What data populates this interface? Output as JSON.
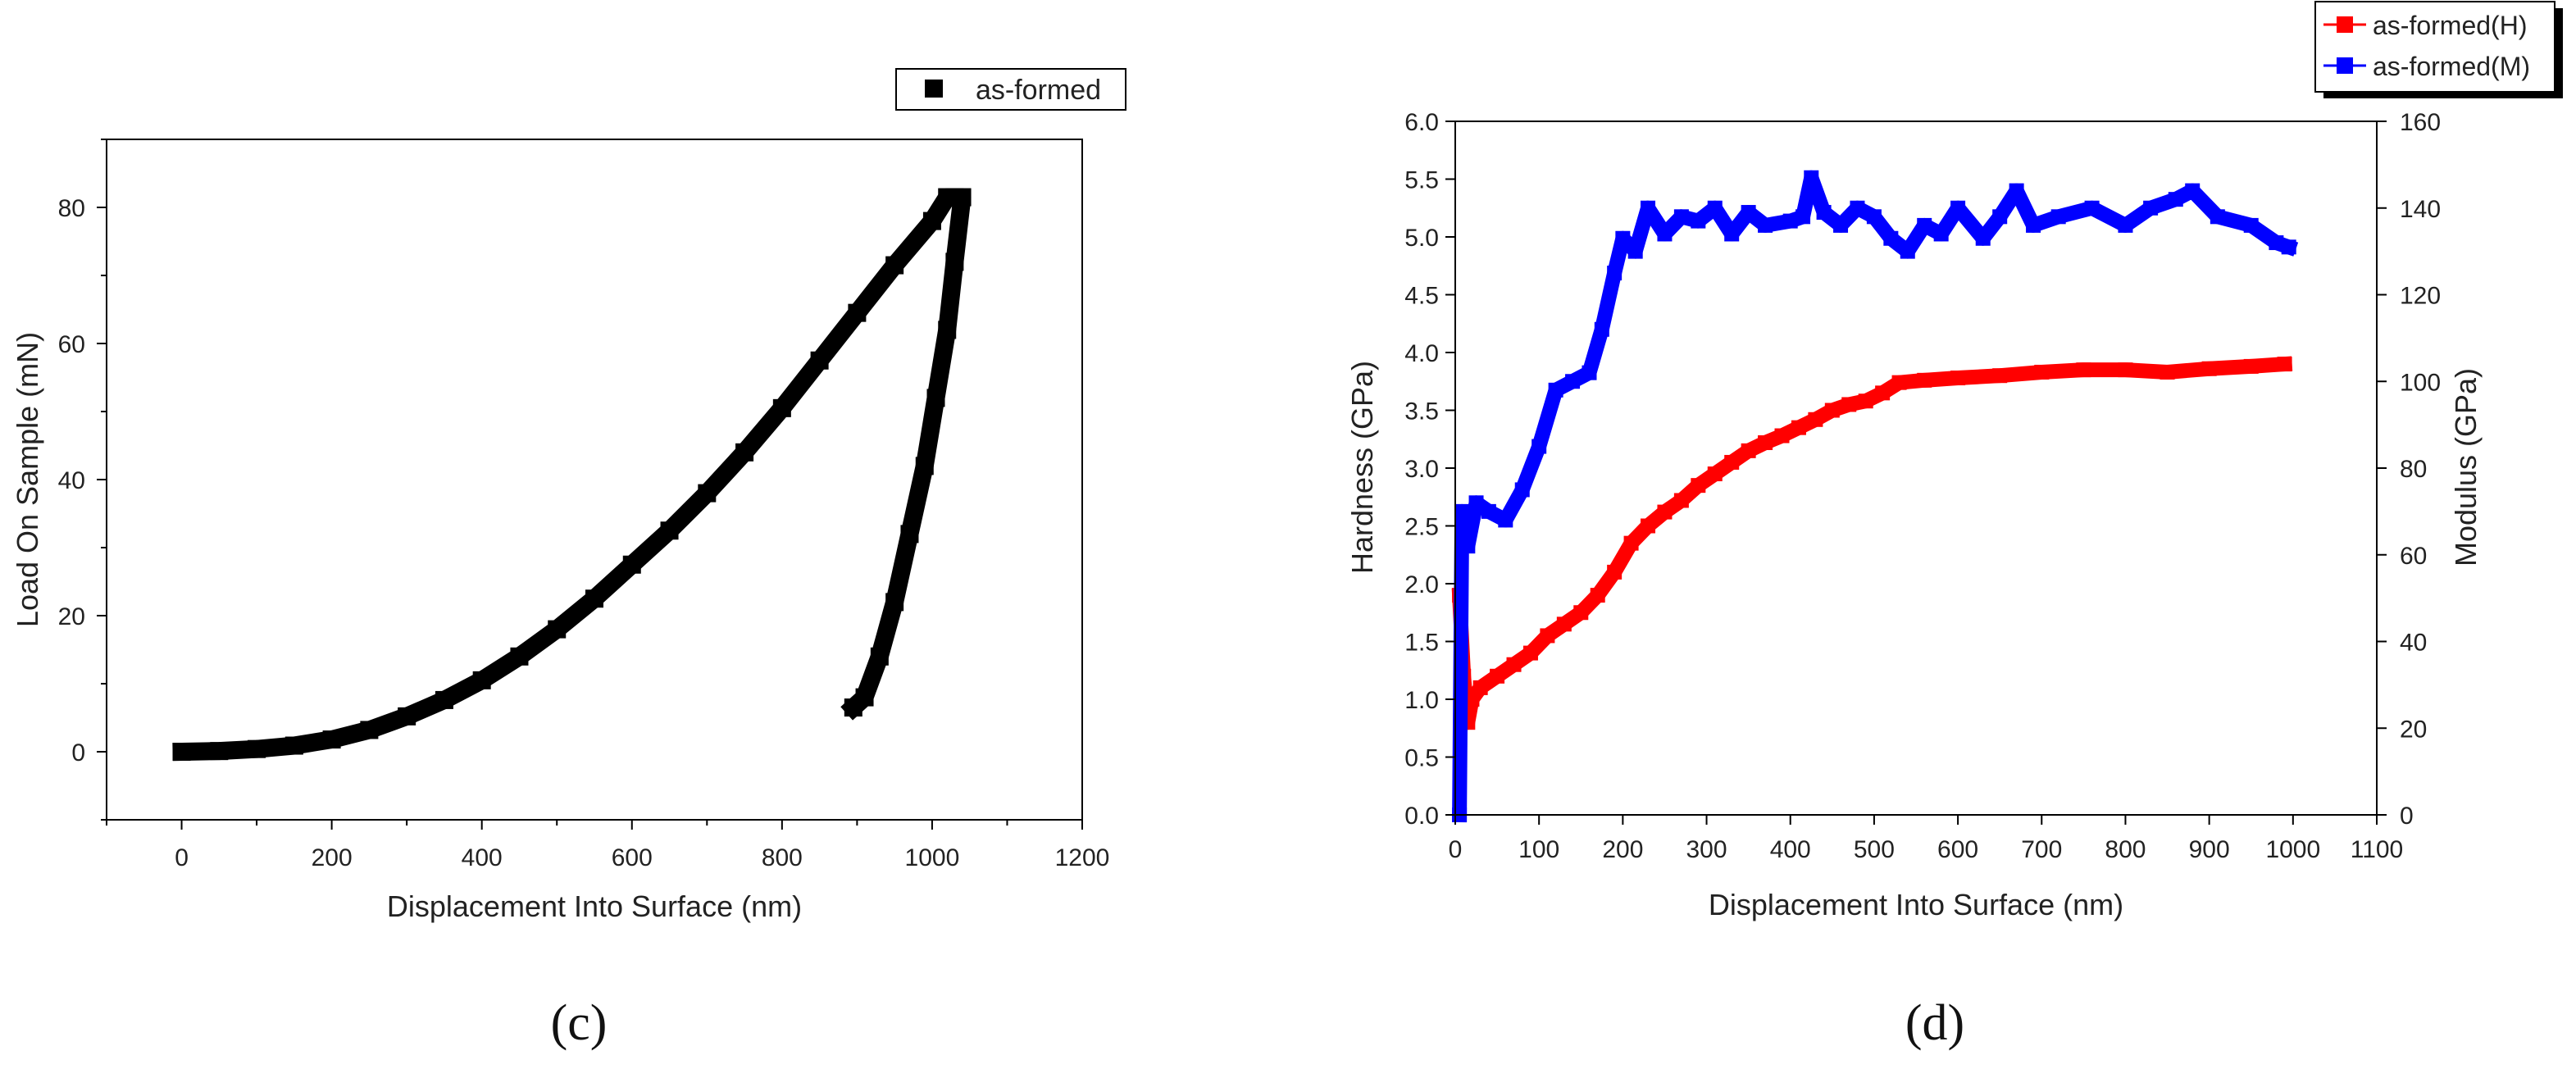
{
  "chart_data": [
    {
      "id": "c",
      "type": "line",
      "panel_label": "(c)",
      "title": "",
      "xlabel": "Displacement Into Surface (nm)",
      "ylabel": "Load On Sample (mN)",
      "xlim": [
        -100,
        1200
      ],
      "ylim": [
        -10,
        90
      ],
      "xticks": [
        0,
        200,
        400,
        600,
        800,
        1000,
        1200
      ],
      "yticks": [
        0,
        20,
        40,
        60,
        80
      ],
      "legend_position": "top-right",
      "series": [
        {
          "name": "as-formed",
          "color": "#000000",
          "marker": "square",
          "points": [
            [
              0,
              0
            ],
            [
              50,
              0.1
            ],
            [
              100,
              0.4
            ],
            [
              150,
              0.9
            ],
            [
              200,
              1.8
            ],
            [
              250,
              3.2
            ],
            [
              300,
              5.2
            ],
            [
              350,
              7.6
            ],
            [
              400,
              10.5
            ],
            [
              450,
              14
            ],
            [
              500,
              18
            ],
            [
              550,
              22.5
            ],
            [
              600,
              27.5
            ],
            [
              650,
              32.5
            ],
            [
              700,
              38
            ],
            [
              750,
              44
            ],
            [
              800,
              50.5
            ],
            [
              850,
              57.5
            ],
            [
              900,
              64.5
            ],
            [
              950,
              71.5
            ],
            [
              1000,
              78
            ],
            [
              1020,
              81.5
            ],
            [
              1040,
              81.5
            ],
            [
              1030,
              72
            ],
            [
              1020,
              62
            ],
            [
              1005,
              52
            ],
            [
              990,
              42
            ],
            [
              970,
              32
            ],
            [
              950,
              22
            ],
            [
              930,
              14
            ],
            [
              910,
              8
            ],
            [
              895,
              6.5
            ]
          ]
        }
      ]
    },
    {
      "id": "d",
      "type": "line",
      "panel_label": "(d)",
      "title": "",
      "xlabel": "Displacement Into Surface (nm)",
      "ylabel": "Hardness (GPa)",
      "y2label": "Modulus (GPa)",
      "xlim": [
        0,
        1100
      ],
      "ylim": [
        0,
        6
      ],
      "y2lim": [
        0,
        160
      ],
      "xticks": [
        0,
        100,
        200,
        300,
        400,
        500,
        600,
        700,
        800,
        900,
        1000,
        1100
      ],
      "yticks": [
        "0.0",
        "0.5",
        "1.0",
        "1.5",
        "2.0",
        "2.5",
        "3.0",
        "3.5",
        "4.0",
        "4.5",
        "5.0",
        "5.5",
        "6.0"
      ],
      "y2ticks": [
        0,
        20,
        40,
        60,
        80,
        100,
        120,
        140,
        160
      ],
      "legend_position": "top-right",
      "series": [
        {
          "name": "as-formed(H)",
          "axis": "left",
          "color": "#ff0000",
          "marker": "square",
          "points": [
            [
              5,
              1.9
            ],
            [
              10,
              1.2
            ],
            [
              15,
              0.8
            ],
            [
              20,
              1.0
            ],
            [
              30,
              1.1
            ],
            [
              50,
              1.2
            ],
            [
              70,
              1.3
            ],
            [
              90,
              1.4
            ],
            [
              110,
              1.55
            ],
            [
              130,
              1.65
            ],
            [
              150,
              1.75
            ],
            [
              170,
              1.9
            ],
            [
              190,
              2.1
            ],
            [
              210,
              2.35
            ],
            [
              230,
              2.5
            ],
            [
              250,
              2.62
            ],
            [
              270,
              2.72
            ],
            [
              290,
              2.85
            ],
            [
              310,
              2.95
            ],
            [
              330,
              3.05
            ],
            [
              350,
              3.15
            ],
            [
              370,
              3.22
            ],
            [
              390,
              3.28
            ],
            [
              410,
              3.35
            ],
            [
              430,
              3.42
            ],
            [
              450,
              3.5
            ],
            [
              470,
              3.55
            ],
            [
              490,
              3.58
            ],
            [
              510,
              3.65
            ],
            [
              530,
              3.74
            ],
            [
              560,
              3.76
            ],
            [
              600,
              3.78
            ],
            [
              650,
              3.8
            ],
            [
              700,
              3.83
            ],
            [
              750,
              3.85
            ],
            [
              800,
              3.85
            ],
            [
              850,
              3.83
            ],
            [
              900,
              3.86
            ],
            [
              950,
              3.88
            ],
            [
              990,
              3.9
            ]
          ]
        },
        {
          "name": "as-formed(M)",
          "axis": "right",
          "color": "#0000ff",
          "marker": "square",
          "points": [
            [
              5,
              0
            ],
            [
              8,
              70
            ],
            [
              15,
              62
            ],
            [
              25,
              72
            ],
            [
              40,
              70
            ],
            [
              60,
              68
            ],
            [
              80,
              75
            ],
            [
              100,
              85
            ],
            [
              120,
              98
            ],
            [
              140,
              100
            ],
            [
              160,
              102
            ],
            [
              175,
              112
            ],
            [
              190,
              125
            ],
            [
              200,
              133
            ],
            [
              215,
              130
            ],
            [
              230,
              140
            ],
            [
              250,
              134
            ],
            [
              270,
              138
            ],
            [
              290,
              137
            ],
            [
              310,
              140
            ],
            [
              330,
              134
            ],
            [
              350,
              139
            ],
            [
              370,
              136
            ],
            [
              400,
              137
            ],
            [
              415,
              138
            ],
            [
              425,
              147
            ],
            [
              440,
              139
            ],
            [
              460,
              136
            ],
            [
              480,
              140
            ],
            [
              500,
              138
            ],
            [
              520,
              133
            ],
            [
              540,
              130
            ],
            [
              560,
              136
            ],
            [
              580,
              134
            ],
            [
              600,
              140
            ],
            [
              630,
              133
            ],
            [
              650,
              138
            ],
            [
              670,
              144
            ],
            [
              690,
              136
            ],
            [
              720,
              138
            ],
            [
              760,
              140
            ],
            [
              800,
              136
            ],
            [
              830,
              140
            ],
            [
              860,
              142
            ],
            [
              880,
              144
            ],
            [
              910,
              138
            ],
            [
              950,
              136
            ],
            [
              980,
              132
            ],
            [
              995,
              131
            ]
          ]
        }
      ]
    }
  ]
}
